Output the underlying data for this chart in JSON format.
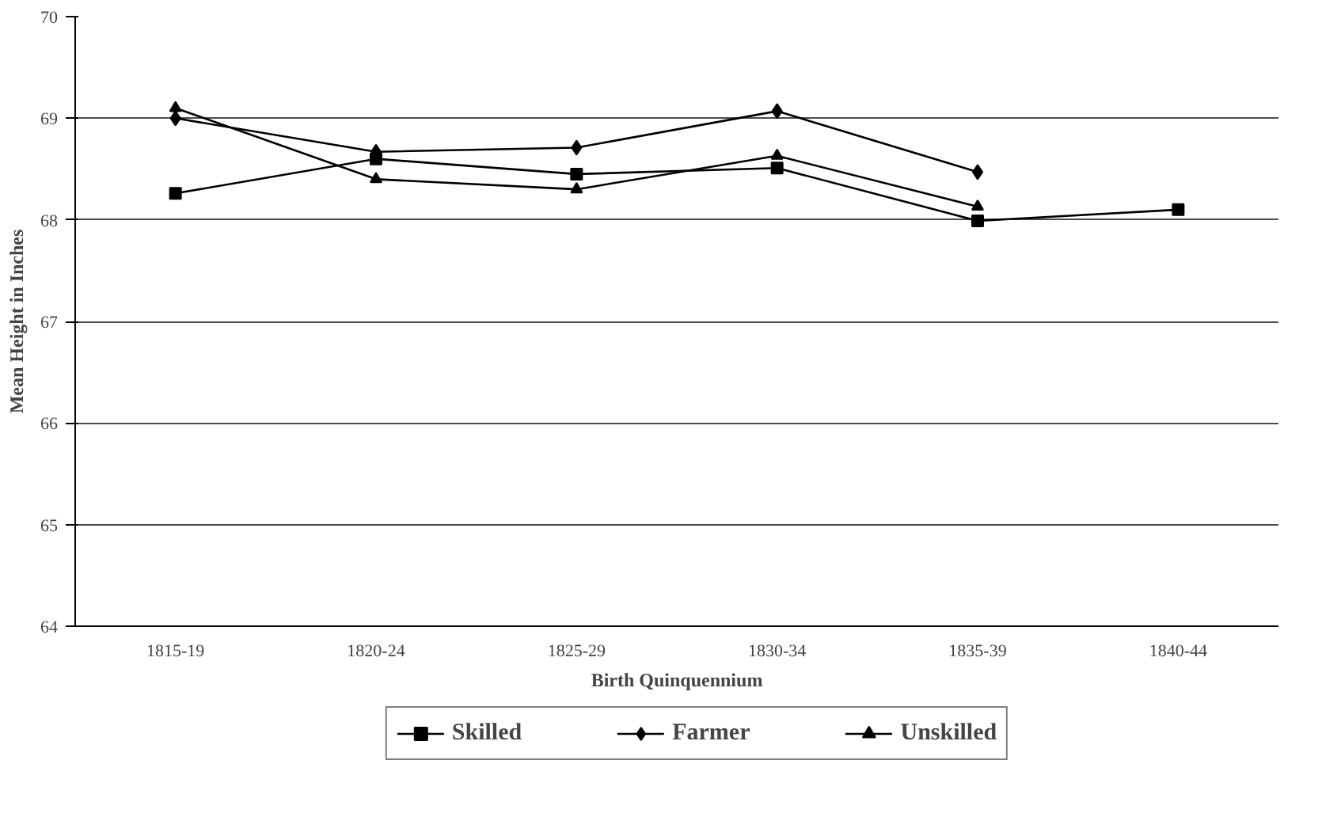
{
  "chart_data": {
    "type": "line",
    "xlabel": "Birth Quinquennium",
    "ylabel": "Mean Height in Inches",
    "categories": [
      "1815-19",
      "1820-24",
      "1825-29",
      "1830-34",
      "1835-39",
      "1840-44"
    ],
    "series": [
      {
        "name": "Skilled",
        "color": "#000000",
        "marker": "square",
        "values": [
          68.26,
          68.6,
          68.45,
          68.51,
          67.99,
          68.1
        ]
      },
      {
        "name": "Farmer",
        "color": "#000000",
        "marker": "diamond",
        "values": [
          69.0,
          68.67,
          68.71,
          69.07,
          68.47,
          null
        ]
      },
      {
        "name": "Unskilled",
        "color": "#000000",
        "marker": "triangle",
        "values": [
          69.1,
          68.4,
          68.3,
          68.63,
          68.13,
          null
        ]
      }
    ],
    "ylim": [
      64,
      70
    ],
    "yticks": [
      64,
      65,
      66,
      67,
      68,
      69,
      70
    ],
    "grid": "y",
    "legend": "bottom",
    "line_style": "solid"
  }
}
